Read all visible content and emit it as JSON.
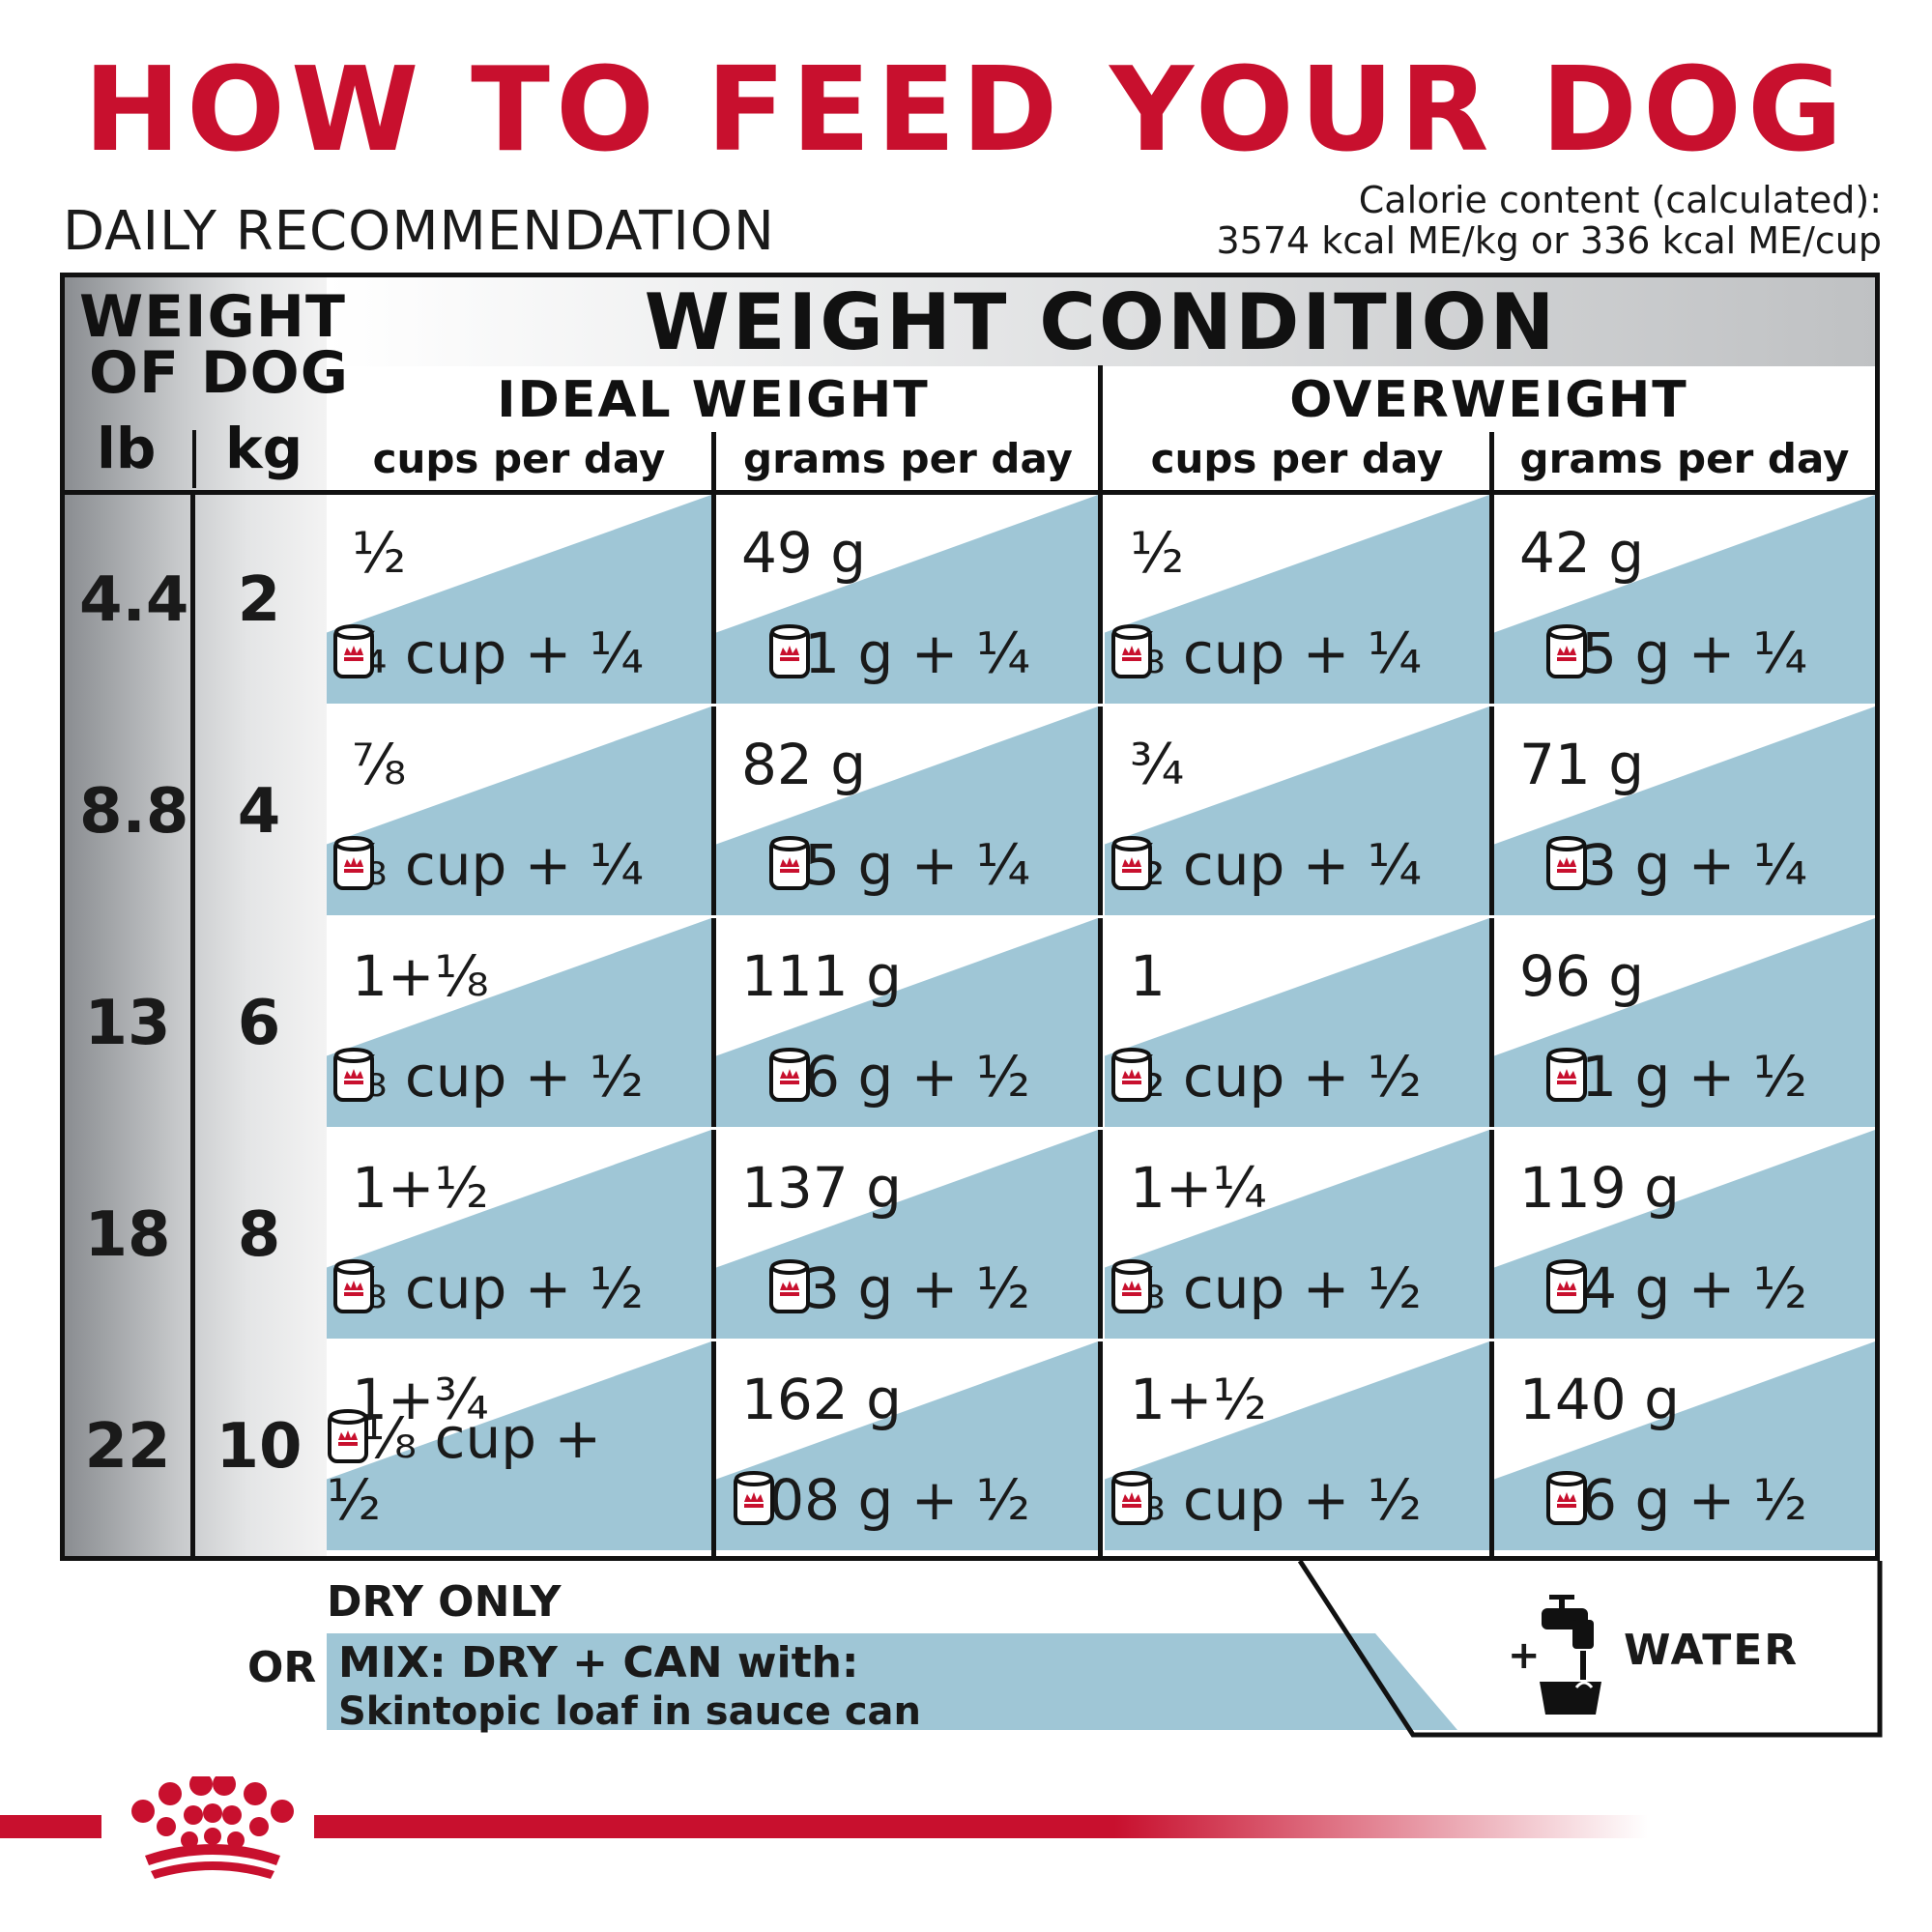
{
  "title": "HOW TO FEED YOUR DOG",
  "subtitle": "DAILY RECOMMENDATION",
  "calorie": {
    "line1": "Calorie content (calculated):",
    "line2": "3574 kcal ME/kg or 336 kcal ME/cup"
  },
  "header": {
    "weight_of_dog_line1": "WEIGHT",
    "weight_of_dog_line2": "OF DOG",
    "lb": "lb",
    "kg": "kg",
    "weight_condition": "WEIGHT CONDITION",
    "ideal_weight": "IDEAL WEIGHT",
    "overweight": "OVERWEIGHT",
    "cups_per_day": "cups per day",
    "grams_per_day": "grams per day"
  },
  "colors": {
    "brand_red": "#c8102e",
    "cell_blue": "#9fc6d6"
  },
  "rows": [
    {
      "lb": "4.4",
      "kg": "2",
      "cells": [
        {
          "dry": "½",
          "mix": "¼ cup + ¼"
        },
        {
          "dry": "49 g",
          "mix": "21 g + ¼"
        },
        {
          "dry": "½",
          "mix": "⅛ cup + ¼"
        },
        {
          "dry": "42 g",
          "mix": "15 g + ¼"
        }
      ]
    },
    {
      "lb": "8.8",
      "kg": "4",
      "cells": [
        {
          "dry": "⅞",
          "mix": "⅝ cup + ¼"
        },
        {
          "dry": "82 g",
          "mix": "55 g + ¼"
        },
        {
          "dry": "¾",
          "mix": "½ cup + ¼"
        },
        {
          "dry": "71 g",
          "mix": "43 g + ¼"
        }
      ]
    },
    {
      "lb": "13",
      "kg": "6",
      "cells": [
        {
          "dry": "1+⅛",
          "mix": "⅝ cup + ½"
        },
        {
          "dry": "111 g",
          "mix": "56 g + ½"
        },
        {
          "dry": "1",
          "mix": "½ cup + ½"
        },
        {
          "dry": "96 g",
          "mix": "41 g + ½"
        }
      ]
    },
    {
      "lb": "18",
      "kg": "8",
      "cells": [
        {
          "dry": "1+½",
          "mix": "⅞ cup + ½"
        },
        {
          "dry": "137 g",
          "mix": "83 g + ½"
        },
        {
          "dry": "1+¼",
          "mix": "⅝ cup + ½"
        },
        {
          "dry": "119 g",
          "mix": "64 g + ½"
        }
      ]
    },
    {
      "lb": "22",
      "kg": "10",
      "cells": [
        {
          "dry": "1+¾",
          "mix": "1⅛ cup + ½"
        },
        {
          "dry": "162 g",
          "mix": "108 g + ½"
        },
        {
          "dry": "1+½",
          "mix": "⅞ cup + ½"
        },
        {
          "dry": "140 g",
          "mix": "86 g + ½"
        }
      ]
    }
  ],
  "legend": {
    "dry_only": "DRY ONLY",
    "or": "OR",
    "mix_line1": "MIX: DRY + CAN with:",
    "mix_line2": "Skintopic loaf in sauce can",
    "plus": "+",
    "water": "WATER",
    "can_icon": "can-icon",
    "faucet_icon": "faucet-bowl-icon"
  },
  "footer": {
    "logo_icon": "crown-logo-icon"
  }
}
